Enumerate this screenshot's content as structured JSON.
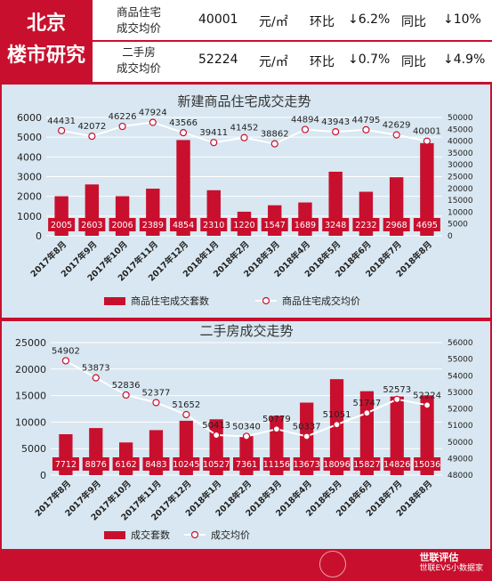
{
  "header": {
    "brand_line1": "北京",
    "brand_line2": "楼市研究",
    "rows": [
      {
        "label_line1": "商品住宅",
        "label_line2": "成交均价",
        "value": "40001",
        "unit": "元/㎡",
        "k1": "环比",
        "v1": "↓6.2%",
        "k2": "同比",
        "v2": "↓10%"
      },
      {
        "label_line1": "二手房",
        "label_line2": "成交均价",
        "value": "52224",
        "unit": "元/㎡",
        "k1": "环比",
        "v1": "↓0.7%",
        "k2": "同比",
        "v2": "↓4.9%"
      }
    ]
  },
  "footer": {
    "logo_line1": "世联评估",
    "logo_line2": "世联EVS小数据家"
  },
  "colors": {
    "bar": "#c8102e",
    "panel": "#d8e7f1",
    "line": "#ffffff",
    "marker_edge": "#c8102e",
    "grid": "#ffffff"
  },
  "chart_data": [
    {
      "type": "bar",
      "title": "新建商品住宅成交走势",
      "categories": [
        "2017年8月",
        "2017年9月",
        "2017年10月",
        "2017年11月",
        "2017年12月",
        "2018年1月",
        "2018年2月",
        "2018年3月",
        "2018年4月",
        "2018年5月",
        "2018年6月",
        "2018年7月",
        "2018年8月"
      ],
      "series": [
        {
          "name": "商品住宅成交套数",
          "type": "bar",
          "axis": "left",
          "values": [
            2005,
            2603,
            2006,
            2389,
            4854,
            2310,
            1220,
            1547,
            1689,
            3248,
            2232,
            2968,
            4695
          ]
        },
        {
          "name": "商品住宅成交均价",
          "type": "line",
          "axis": "right",
          "values": [
            44431,
            42072,
            46226,
            47924,
            43566,
            39411,
            41452,
            38862,
            44894,
            43943,
            44795,
            42629,
            40001
          ]
        }
      ],
      "ylim_left": [
        0,
        6000
      ],
      "yticks_left": [
        "0",
        "1000",
        "2000",
        "3000",
        "4000",
        "5000",
        "6000"
      ],
      "ylim_right": [
        0,
        50000
      ],
      "yticks_right": [
        "0",
        "5000",
        "10000",
        "15000",
        "20000",
        "25000",
        "30000",
        "35000",
        "40000",
        "45000",
        "50000"
      ],
      "grid": true,
      "legend": "bottom"
    },
    {
      "type": "bar",
      "title": "二手房成交走势",
      "categories": [
        "2017年8月",
        "2017年9月",
        "2017年10月",
        "2017年11月",
        "2017年12月",
        "2018年1月",
        "2018年2月",
        "2018年3月",
        "2018年4月",
        "2018年5月",
        "2018年6月",
        "2018年7月",
        "2018年8月"
      ],
      "series": [
        {
          "name": "成交套数",
          "type": "bar",
          "axis": "left",
          "values": [
            7712,
            8876,
            6162,
            8483,
            10245,
            10527,
            7361,
            11156,
            13673,
            18096,
            15827,
            14826,
            15036
          ]
        },
        {
          "name": "成交均价",
          "type": "line",
          "axis": "right",
          "values": [
            54902,
            53873,
            52836,
            52377,
            51652,
            50413,
            50340,
            50779,
            50337,
            51051,
            51747,
            52573,
            52224
          ]
        }
      ],
      "ylim_left": [
        0,
        25000
      ],
      "yticks_left": [
        "0",
        "5000",
        "10000",
        "15000",
        "20000",
        "25000"
      ],
      "ylim_right": [
        48000,
        56000
      ],
      "yticks_right": [
        "48000",
        "49000",
        "50000",
        "51000",
        "52000",
        "53000",
        "54000",
        "55000",
        "56000"
      ],
      "grid": true,
      "legend": "bottom"
    }
  ]
}
